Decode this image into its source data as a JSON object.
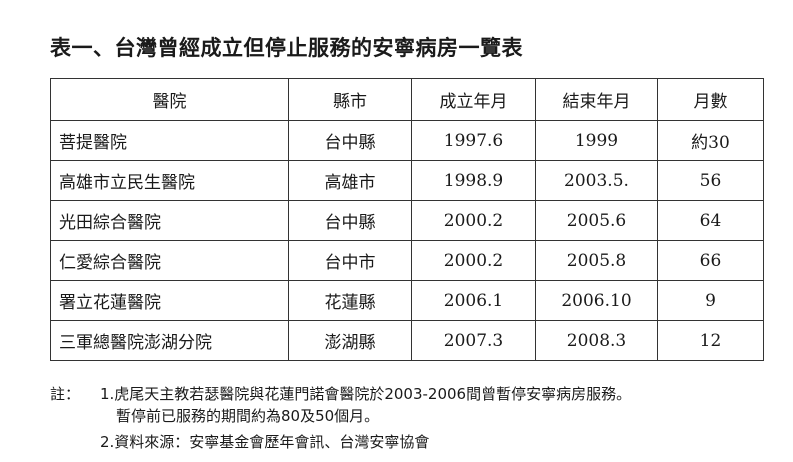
{
  "title": "表一、台灣曾經成立但停止服務的安寧病房一覽表",
  "table": {
    "headers": [
      "醫院",
      "縣市",
      "成立年月",
      "結束年月",
      "月數"
    ],
    "rows": [
      {
        "hospital": "菩提醫院",
        "county": "台中縣",
        "start": "1997.6",
        "end": "1999",
        "months": "約30"
      },
      {
        "hospital": "高雄市立民生醫院",
        "county": "高雄市",
        "start": "1998.9",
        "end": "2003.5.",
        "months": "56"
      },
      {
        "hospital": "光田綜合醫院",
        "county": "台中縣",
        "start": "2000.2",
        "end": "2005.6",
        "months": "64"
      },
      {
        "hospital": "仁愛綜合醫院",
        "county": "台中市",
        "start": "2000.2",
        "end": "2005.8",
        "months": "66"
      },
      {
        "hospital": "署立花蓮醫院",
        "county": "花蓮縣",
        "start": "2006.1",
        "end": "2006.10",
        "months": "9"
      },
      {
        "hospital": "三軍總醫院澎湖分院",
        "county": "澎湖縣",
        "start": "2007.3",
        "end": "2008.3",
        "months": "12"
      }
    ]
  },
  "notes": {
    "label": "註：",
    "line1": "1.虎尾天主教若瑟醫院與花蓮門諾會醫院於2003-2006間曾暫停安寧病房服務。",
    "line2": "暫停前已服務的期間約為80及50個月。",
    "line3": "2.資料來源：安寧基金會歷年會訊、台灣安寧協會"
  }
}
